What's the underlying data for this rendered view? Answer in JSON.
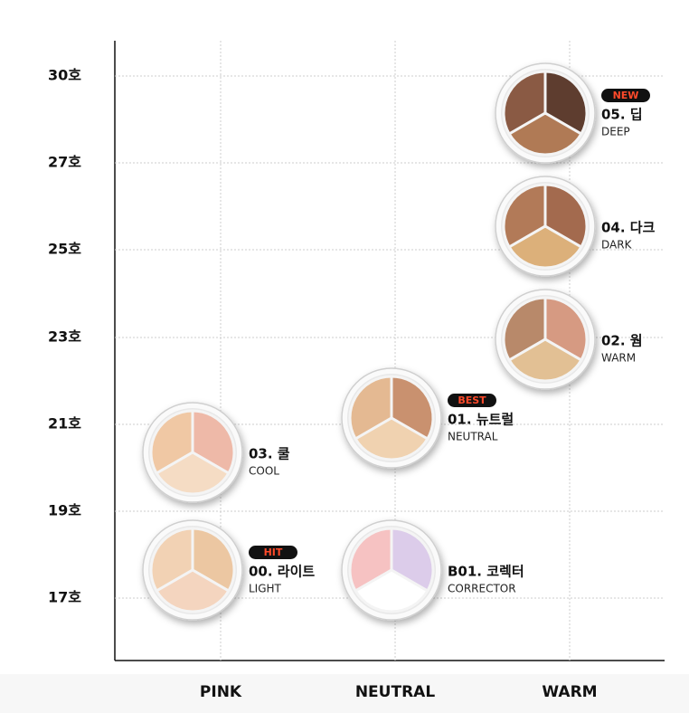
{
  "y_labels": [
    "30호",
    "27호",
    "25호",
    "23호",
    "21호",
    "19호",
    "17호"
  ],
  "x_labels": [
    "PINK",
    "NEUTRAL",
    "WARM"
  ],
  "products": [
    {
      "badge": "NEW",
      "code": "05. 딥",
      "name": "DEEP"
    },
    {
      "code": "04. 다크",
      "name": "DARK"
    },
    {
      "code": "02. 웜",
      "name": "WARM"
    },
    {
      "badge": "BEST",
      "code": "01. 뉴트럴",
      "name": "NEUTRAL"
    },
    {
      "code": "03. 쿨",
      "name": "COOL"
    },
    {
      "badge": "HIT",
      "code": "00. 라이트",
      "name": "LIGHT"
    },
    {
      "code": "B01. 코렉터",
      "name": "CORRECTOR"
    }
  ]
}
